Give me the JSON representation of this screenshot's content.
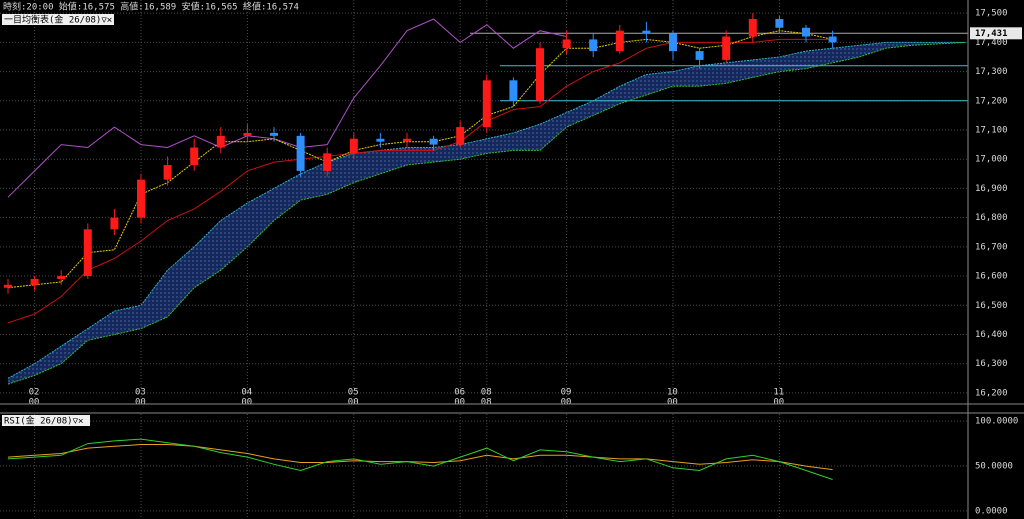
{
  "header": "時刻:20:00 始値:16,575 高値:16,589 安値:16,565 終値:16,574",
  "chart_data": [
    {
      "type": "candlestick",
      "legend_label": "一目均衡表(金 26/08)▽✕",
      "categories": [
        null,
        "02",
        null,
        null,
        null,
        "03",
        null,
        null,
        null,
        "04",
        null,
        null,
        null,
        "05",
        null,
        null,
        null,
        "06",
        "08",
        null,
        null,
        "09",
        null,
        null,
        null,
        "10",
        null,
        null,
        null,
        "11",
        null,
        null,
        null,
        null,
        null,
        null,
        null
      ],
      "category_sublabels": [
        null,
        "00",
        null,
        null,
        null,
        "00",
        null,
        null,
        null,
        "00",
        null,
        null,
        null,
        "00",
        null,
        null,
        null,
        "00",
        "08",
        null,
        null,
        "00",
        null,
        null,
        null,
        "00",
        null,
        null,
        null,
        "00",
        null,
        null,
        null,
        null,
        null,
        null,
        null
      ],
      "ylim": [
        16162,
        17545
      ],
      "yticks": [
        {
          "value": 17500,
          "label": "17,500"
        },
        {
          "value": 17400,
          "label": "17,400"
        },
        {
          "value": 17300,
          "label": "17,300"
        },
        {
          "value": 17200,
          "label": "17,200"
        },
        {
          "value": 17100,
          "label": "17,100"
        },
        {
          "value": 17000,
          "label": "17,000"
        },
        {
          "value": 16900,
          "label": "16,900"
        },
        {
          "value": 16800,
          "label": "16,800"
        },
        {
          "value": 16700,
          "label": "16,700"
        },
        {
          "value": 16600,
          "label": "16,600"
        },
        {
          "value": 16500,
          "label": "16,500"
        },
        {
          "value": 16400,
          "label": "16,400"
        },
        {
          "value": 16300,
          "label": "16,300"
        },
        {
          "value": 16200,
          "label": "16,200"
        }
      ],
      "grid": true,
      "up_color": "#ff1a1a",
      "down_color": "#2f8fff",
      "open": [
        16560,
        16570,
        16590,
        16600,
        16760,
        16800,
        16930,
        16980,
        17040,
        17080,
        17090,
        17080,
        16960,
        17020,
        17070,
        17060,
        17070,
        17050,
        17110,
        17270,
        17200,
        17380,
        17410,
        17370,
        17440,
        17430,
        17370,
        17340,
        17420,
        17480,
        17450,
        17420,
        null,
        null,
        null,
        null,
        null
      ],
      "high": [
        16590,
        16600,
        16620,
        16780,
        16830,
        16950,
        17010,
        17070,
        17110,
        17120,
        17110,
        17090,
        17040,
        17090,
        17090,
        17090,
        17080,
        17130,
        17290,
        17280,
        17400,
        17440,
        17430,
        17460,
        17470,
        17440,
        17380,
        17440,
        17500,
        17490,
        17460,
        17440,
        null,
        null,
        null,
        null,
        null
      ],
      "low": [
        16540,
        16550,
        16570,
        16590,
        16740,
        16780,
        16910,
        16960,
        17020,
        17060,
        17060,
        16940,
        16940,
        17000,
        17040,
        17040,
        17030,
        17040,
        17090,
        17180,
        17190,
        17360,
        17350,
        17360,
        17400,
        17340,
        17310,
        17330,
        17400,
        17430,
        17400,
        17380,
        null,
        null,
        null,
        null,
        null
      ],
      "close": [
        16570,
        16590,
        16600,
        16760,
        16800,
        16930,
        16980,
        17040,
        17080,
        17090,
        17080,
        16960,
        17020,
        17070,
        17060,
        17070,
        17050,
        17110,
        17270,
        17200,
        17380,
        17410,
        17370,
        17440,
        17430,
        17370,
        17340,
        17420,
        17480,
        17450,
        17420,
        17400,
        null,
        null,
        null,
        null,
        null
      ],
      "cloud": {
        "upper": "spanA",
        "lower": "spanB",
        "color": "#15285c"
      },
      "series": [
        {
          "name": "spanA",
          "color": "#30b0c8",
          "values": [
            16250,
            16300,
            16360,
            16420,
            16480,
            16500,
            16620,
            16700,
            16790,
            16850,
            16900,
            16950,
            16990,
            17020,
            17030,
            17040,
            17040,
            17050,
            17070,
            17090,
            17120,
            17160,
            17200,
            17250,
            17290,
            17300,
            17320,
            17330,
            17340,
            17350,
            17370,
            17380,
            17390,
            17400,
            17400,
            17400,
            17400
          ]
        },
        {
          "name": "spanB",
          "color": "#30c030",
          "values": [
            16230,
            16260,
            16300,
            16380,
            16400,
            16420,
            16460,
            16560,
            16620,
            16700,
            16790,
            16860,
            16880,
            16920,
            16950,
            16980,
            16990,
            17000,
            17020,
            17030,
            17030,
            17110,
            17150,
            17190,
            17220,
            17250,
            17250,
            17260,
            17280,
            17300,
            17310,
            17330,
            17350,
            17380,
            17390,
            17395,
            17400
          ]
        },
        {
          "name": "chikou",
          "color": "#b050c8",
          "values": [
            16870,
            16960,
            17050,
            17040,
            17110,
            17050,
            17040,
            17080,
            17040,
            17080,
            17070,
            17040,
            17050,
            17210,
            17320,
            17440,
            17480,
            17400,
            17460,
            17380,
            17440,
            17420,
            null,
            null,
            null,
            null,
            null,
            null,
            null,
            null,
            null,
            null,
            null,
            null,
            null,
            null,
            null
          ]
        },
        {
          "name": "kijun",
          "color": "#cc1010",
          "values": [
            16440,
            16470,
            16530,
            16620,
            16660,
            16720,
            16790,
            16830,
            16890,
            16960,
            16990,
            17000,
            17010,
            17020,
            17030,
            17030,
            17030,
            17060,
            17130,
            17170,
            17180,
            17250,
            17300,
            17330,
            17380,
            17400,
            17400,
            17400,
            17400,
            17410,
            17410,
            17410,
            null,
            null,
            null,
            null,
            null
          ]
        },
        {
          "name": "tenkan",
          "color": "#e8d000",
          "values": [
            16560,
            16570,
            16580,
            16680,
            16690,
            16880,
            16920,
            16990,
            17060,
            17060,
            17070,
            17030,
            16990,
            17030,
            17050,
            17060,
            17060,
            17080,
            17150,
            17180,
            17290,
            17380,
            17380,
            17400,
            17410,
            17400,
            17380,
            17390,
            17420,
            17440,
            17430,
            17410,
            null,
            null,
            null,
            null,
            null
          ]
        }
      ],
      "levels": [
        {
          "value": 17320,
          "color": "#40c0d0"
        },
        {
          "value": 17200,
          "color": "#40c0d0"
        }
      ],
      "last_price": {
        "value": 17431,
        "label": "17,431"
      }
    },
    {
      "type": "line",
      "legend_label": "RSI(金 26/08)▽✕",
      "ylim": [
        -9,
        108
      ],
      "yticks": [
        {
          "value": 100,
          "label": "100.0000"
        },
        {
          "value": 50,
          "label": "50.0000"
        },
        {
          "value": 0,
          "label": "0.0000"
        }
      ],
      "grid": true,
      "series": [
        {
          "name": "signal",
          "color": "#e8a020",
          "values": [
            60,
            62,
            64,
            70,
            72,
            74,
            74,
            72,
            68,
            64,
            58,
            54,
            54,
            56,
            55,
            55,
            54,
            56,
            62,
            58,
            62,
            62,
            60,
            58,
            58,
            55,
            52,
            54,
            57,
            55,
            50,
            46,
            null,
            null,
            null,
            null,
            null
          ]
        },
        {
          "name": "rsi",
          "color": "#30d030",
          "values": [
            58,
            60,
            62,
            75,
            78,
            80,
            76,
            72,
            65,
            60,
            52,
            45,
            55,
            58,
            52,
            55,
            50,
            60,
            70,
            56,
            68,
            66,
            60,
            55,
            58,
            48,
            45,
            58,
            62,
            55,
            45,
            35,
            null,
            null,
            null,
            null,
            null
          ]
        }
      ]
    }
  ]
}
